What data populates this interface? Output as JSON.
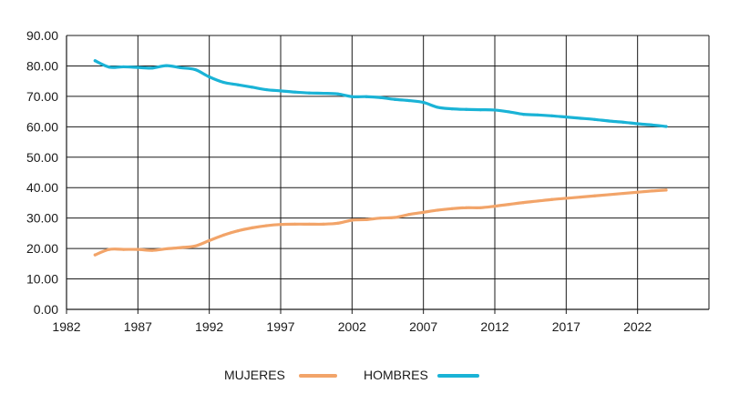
{
  "chart_data": {
    "type": "line",
    "xlim": [
      1982,
      2027
    ],
    "ylim": [
      0,
      90
    ],
    "x_ticks": [
      "1982",
      "1987",
      "1992",
      "1997",
      "2002",
      "2007",
      "2012",
      "2017",
      "2022"
    ],
    "y_ticks": [
      "0.00",
      "10.00",
      "20.00",
      "30.00",
      "40.00",
      "50.00",
      "60.00",
      "70.00",
      "80.00",
      "90.00"
    ],
    "grid": true,
    "legend_position": "bottom-center",
    "series": [
      {
        "name": "MUJERES",
        "color": "#F2A469",
        "x": [
          1984,
          1985,
          1986,
          1987,
          1988,
          1989,
          1990,
          1991,
          1992,
          1993,
          1994,
          1995,
          1996,
          1997,
          1998,
          1999,
          2000,
          2001,
          2002,
          2003,
          2004,
          2005,
          2006,
          2007,
          2008,
          2009,
          2010,
          2011,
          2012,
          2013,
          2014,
          2015,
          2016,
          2017,
          2018,
          2019,
          2020,
          2021,
          2022,
          2023,
          2024
        ],
        "values": [
          17.9,
          19.7,
          19.7,
          19.7,
          19.4,
          19.9,
          20.3,
          20.8,
          22.6,
          24.4,
          25.8,
          26.8,
          27.5,
          27.9,
          28.0,
          28.0,
          28.0,
          28.3,
          29.3,
          29.5,
          30.0,
          30.2,
          31.2,
          31.9,
          32.6,
          33.1,
          33.4,
          33.4,
          33.9,
          34.5,
          35.1,
          35.6,
          36.1,
          36.5,
          36.9,
          37.3,
          37.7,
          38.1,
          38.5,
          38.9,
          39.2
        ]
      },
      {
        "name": "HOMBRES",
        "color": "#1AB3D6",
        "x": [
          1984,
          1985,
          1986,
          1987,
          1988,
          1989,
          1990,
          1991,
          1992,
          1993,
          1994,
          1995,
          1996,
          1997,
          1998,
          1999,
          2000,
          2001,
          2002,
          2003,
          2004,
          2005,
          2006,
          2007,
          2008,
          2009,
          2010,
          2011,
          2012,
          2013,
          2014,
          2015,
          2016,
          2017,
          2018,
          2019,
          2020,
          2021,
          2022,
          2023,
          2024
        ],
        "values": [
          81.7,
          79.6,
          79.7,
          79.5,
          79.3,
          80.1,
          79.4,
          78.8,
          76.4,
          74.6,
          73.8,
          73.0,
          72.2,
          71.8,
          71.4,
          71.1,
          71.0,
          70.8,
          69.9,
          69.9,
          69.6,
          69.0,
          68.6,
          68.0,
          66.4,
          65.9,
          65.7,
          65.6,
          65.5,
          64.9,
          64.1,
          63.9,
          63.6,
          63.2,
          62.8,
          62.4,
          61.9,
          61.5,
          61.0,
          60.6,
          60.1
        ]
      }
    ]
  }
}
